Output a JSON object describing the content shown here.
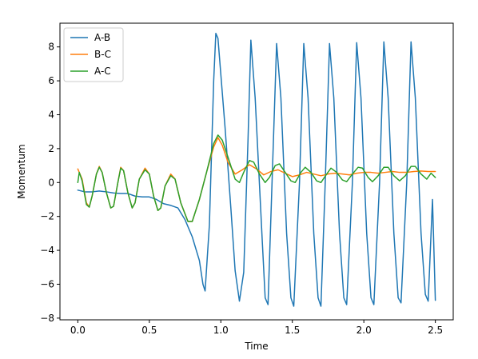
{
  "chart_data": {
    "type": "line",
    "title": "",
    "xlabel": "Time",
    "ylabel": "Momentum",
    "xlim": [
      -0.125,
      2.625
    ],
    "ylim": [
      -8.1,
      9.4
    ],
    "xticks": [
      0.0,
      0.5,
      1.0,
      1.5,
      2.0,
      2.5
    ],
    "xtick_labels": [
      "0.0",
      "0.5",
      "1.0",
      "1.5",
      "2.0",
      "2.5"
    ],
    "yticks": [
      -8,
      -6,
      -4,
      -2,
      0,
      2,
      4,
      6,
      8
    ],
    "ytick_labels": [
      "−8",
      "−6",
      "−4",
      "−2",
      "0",
      "2",
      "4",
      "6",
      "8"
    ],
    "grid": false,
    "legend_position": "top-left",
    "series": [
      {
        "name": "A-B",
        "color": "#1f77b4",
        "points": [
          [
            0.0,
            -0.45
          ],
          [
            0.05,
            -0.55
          ],
          [
            0.1,
            -0.55
          ],
          [
            0.15,
            -0.5
          ],
          [
            0.2,
            -0.55
          ],
          [
            0.25,
            -0.62
          ],
          [
            0.3,
            -0.65
          ],
          [
            0.35,
            -0.65
          ],
          [
            0.4,
            -0.8
          ],
          [
            0.45,
            -0.85
          ],
          [
            0.5,
            -0.85
          ],
          [
            0.55,
            -1.0
          ],
          [
            0.6,
            -1.25
          ],
          [
            0.65,
            -1.35
          ],
          [
            0.7,
            -1.5
          ],
          [
            0.75,
            -2.2
          ],
          [
            0.8,
            -3.2
          ],
          [
            0.85,
            -4.6
          ],
          [
            0.875,
            -6.0
          ],
          [
            0.89,
            -6.4
          ],
          [
            0.92,
            -2.5
          ],
          [
            0.95,
            6.0
          ],
          [
            0.965,
            8.8
          ],
          [
            0.98,
            8.5
          ],
          [
            1.03,
            3.2
          ],
          [
            1.07,
            -1.5
          ],
          [
            1.1,
            -5.2
          ],
          [
            1.13,
            -7.0
          ],
          [
            1.16,
            -5.3
          ],
          [
            1.19,
            2.5
          ],
          [
            1.21,
            8.4
          ],
          [
            1.24,
            5.0
          ],
          [
            1.29,
            -3.5
          ],
          [
            1.31,
            -6.8
          ],
          [
            1.33,
            -7.2
          ],
          [
            1.36,
            0.5
          ],
          [
            1.39,
            8.2
          ],
          [
            1.42,
            5.0
          ],
          [
            1.46,
            -3.0
          ],
          [
            1.49,
            -6.8
          ],
          [
            1.51,
            -7.3
          ],
          [
            1.55,
            0.0
          ],
          [
            1.58,
            8.2
          ],
          [
            1.61,
            5.0
          ],
          [
            1.65,
            -3.0
          ],
          [
            1.68,
            -6.8
          ],
          [
            1.7,
            -7.3
          ],
          [
            1.73,
            0.0
          ],
          [
            1.76,
            8.2
          ],
          [
            1.79,
            5.0
          ],
          [
            1.83,
            -3.0
          ],
          [
            1.86,
            -6.8
          ],
          [
            1.88,
            -7.2
          ],
          [
            1.92,
            0.0
          ],
          [
            1.95,
            8.25
          ],
          [
            1.98,
            5.0
          ],
          [
            2.02,
            -3.0
          ],
          [
            2.05,
            -6.8
          ],
          [
            2.07,
            -7.2
          ],
          [
            2.11,
            0.0
          ],
          [
            2.14,
            8.3
          ],
          [
            2.17,
            5.0
          ],
          [
            2.21,
            -3.0
          ],
          [
            2.24,
            -6.8
          ],
          [
            2.26,
            -7.1
          ],
          [
            2.3,
            0.0
          ],
          [
            2.33,
            8.3
          ],
          [
            2.36,
            5.0
          ],
          [
            2.4,
            -3.0
          ],
          [
            2.43,
            -6.6
          ],
          [
            2.45,
            -7.0
          ],
          [
            2.48,
            -1.0
          ],
          [
            2.5,
            -6.95
          ]
        ]
      },
      {
        "name": "B-C",
        "color": "#ff7f0e",
        "points": [
          [
            0.0,
            0.8
          ],
          [
            0.03,
            0.2
          ],
          [
            0.06,
            -1.2
          ],
          [
            0.08,
            -1.45
          ],
          [
            0.1,
            -0.8
          ],
          [
            0.13,
            0.5
          ],
          [
            0.15,
            0.95
          ],
          [
            0.17,
            0.6
          ],
          [
            0.2,
            -0.6
          ],
          [
            0.23,
            -1.5
          ],
          [
            0.25,
            -1.4
          ],
          [
            0.28,
            0.0
          ],
          [
            0.3,
            0.9
          ],
          [
            0.32,
            0.7
          ],
          [
            0.35,
            -0.6
          ],
          [
            0.38,
            -1.5
          ],
          [
            0.4,
            -1.2
          ],
          [
            0.43,
            0.2
          ],
          [
            0.47,
            0.85
          ],
          [
            0.5,
            0.5
          ],
          [
            0.53,
            -0.8
          ],
          [
            0.56,
            -1.65
          ],
          [
            0.58,
            -1.5
          ],
          [
            0.61,
            -0.2
          ],
          [
            0.65,
            0.5
          ],
          [
            0.68,
            0.2
          ],
          [
            0.72,
            -1.2
          ],
          [
            0.77,
            -2.3
          ],
          [
            0.8,
            -2.3
          ],
          [
            0.85,
            -1.0
          ],
          [
            0.9,
            0.6
          ],
          [
            0.95,
            2.1
          ],
          [
            0.98,
            2.65
          ],
          [
            1.01,
            2.2
          ],
          [
            1.05,
            1.2
          ],
          [
            1.1,
            0.5
          ],
          [
            1.15,
            0.75
          ],
          [
            1.2,
            1.05
          ],
          [
            1.25,
            0.8
          ],
          [
            1.3,
            0.45
          ],
          [
            1.35,
            0.65
          ],
          [
            1.4,
            0.75
          ],
          [
            1.45,
            0.55
          ],
          [
            1.5,
            0.35
          ],
          [
            1.55,
            0.45
          ],
          [
            1.6,
            0.6
          ],
          [
            1.65,
            0.5
          ],
          [
            1.7,
            0.4
          ],
          [
            1.75,
            0.5
          ],
          [
            1.8,
            0.55
          ],
          [
            1.85,
            0.5
          ],
          [
            1.9,
            0.45
          ],
          [
            1.95,
            0.55
          ],
          [
            2.0,
            0.6
          ],
          [
            2.05,
            0.6
          ],
          [
            2.1,
            0.55
          ],
          [
            2.15,
            0.6
          ],
          [
            2.2,
            0.65
          ],
          [
            2.25,
            0.6
          ],
          [
            2.3,
            0.6
          ],
          [
            2.35,
            0.65
          ],
          [
            2.4,
            0.68
          ],
          [
            2.45,
            0.65
          ],
          [
            2.5,
            0.65
          ]
        ]
      },
      {
        "name": "A-C",
        "color": "#2ca02c",
        "points": [
          [
            0.0,
            0.0
          ],
          [
            0.01,
            0.6
          ],
          [
            0.03,
            0.1
          ],
          [
            0.06,
            -1.3
          ],
          [
            0.08,
            -1.45
          ],
          [
            0.1,
            -0.8
          ],
          [
            0.13,
            0.5
          ],
          [
            0.15,
            0.9
          ],
          [
            0.17,
            0.6
          ],
          [
            0.2,
            -0.6
          ],
          [
            0.23,
            -1.5
          ],
          [
            0.25,
            -1.4
          ],
          [
            0.28,
            0.0
          ],
          [
            0.3,
            0.85
          ],
          [
            0.32,
            0.7
          ],
          [
            0.35,
            -0.6
          ],
          [
            0.38,
            -1.5
          ],
          [
            0.4,
            -1.2
          ],
          [
            0.43,
            0.2
          ],
          [
            0.47,
            0.75
          ],
          [
            0.5,
            0.5
          ],
          [
            0.53,
            -0.8
          ],
          [
            0.56,
            -1.65
          ],
          [
            0.58,
            -1.5
          ],
          [
            0.61,
            -0.2
          ],
          [
            0.65,
            0.4
          ],
          [
            0.68,
            0.2
          ],
          [
            0.72,
            -1.2
          ],
          [
            0.77,
            -2.3
          ],
          [
            0.8,
            -2.3
          ],
          [
            0.85,
            -1.0
          ],
          [
            0.9,
            0.6
          ],
          [
            0.95,
            2.3
          ],
          [
            0.98,
            2.8
          ],
          [
            1.01,
            2.5
          ],
          [
            1.05,
            1.5
          ],
          [
            1.1,
            0.2
          ],
          [
            1.13,
            0.0
          ],
          [
            1.16,
            0.6
          ],
          [
            1.2,
            1.3
          ],
          [
            1.23,
            1.2
          ],
          [
            1.27,
            0.5
          ],
          [
            1.31,
            0.0
          ],
          [
            1.34,
            0.3
          ],
          [
            1.38,
            1.0
          ],
          [
            1.41,
            1.1
          ],
          [
            1.45,
            0.6
          ],
          [
            1.49,
            0.1
          ],
          [
            1.52,
            0.0
          ],
          [
            1.56,
            0.6
          ],
          [
            1.59,
            0.9
          ],
          [
            1.63,
            0.6
          ],
          [
            1.67,
            0.1
          ],
          [
            1.7,
            0.0
          ],
          [
            1.74,
            0.5
          ],
          [
            1.77,
            0.85
          ],
          [
            1.81,
            0.6
          ],
          [
            1.85,
            0.15
          ],
          [
            1.88,
            0.05
          ],
          [
            1.92,
            0.5
          ],
          [
            1.96,
            0.9
          ],
          [
            1.99,
            0.85
          ],
          [
            2.03,
            0.3
          ],
          [
            2.06,
            0.05
          ],
          [
            2.1,
            0.4
          ],
          [
            2.14,
            0.9
          ],
          [
            2.17,
            0.9
          ],
          [
            2.21,
            0.4
          ],
          [
            2.25,
            0.1
          ],
          [
            2.29,
            0.4
          ],
          [
            2.33,
            0.95
          ],
          [
            2.36,
            0.95
          ],
          [
            2.4,
            0.5
          ],
          [
            2.44,
            0.2
          ],
          [
            2.47,
            0.55
          ],
          [
            2.5,
            0.3
          ]
        ]
      }
    ]
  }
}
